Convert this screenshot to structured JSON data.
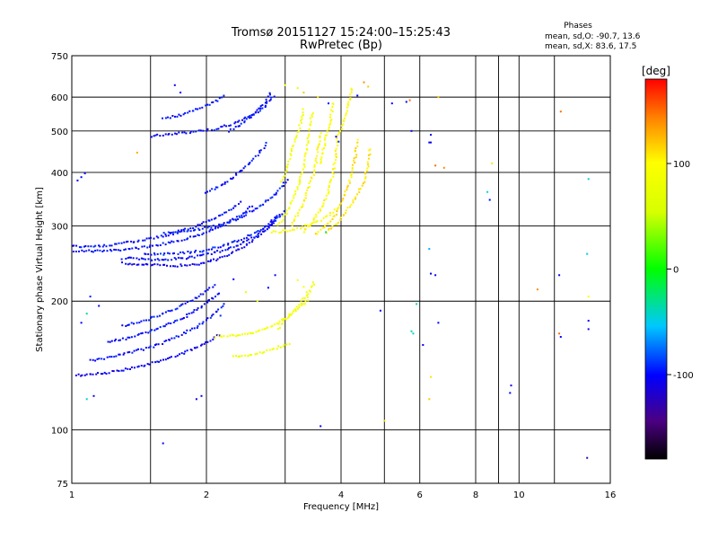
{
  "header": {
    "title": "Tromsø 20151127 15:24:00–15:25:43",
    "subtitle": "RwPretec (Bp)",
    "stats_title": "Phases",
    "stats_o": "mean, sd,O: -90.7, 13.6",
    "stats_x": "mean, sd,X:  83.6, 17.5"
  },
  "colorbar": {
    "unit": "[deg]",
    "range": [
      -180,
      180
    ],
    "ticks": [
      {
        "value": 100,
        "label": "100"
      },
      {
        "value": 0,
        "label": "0"
      },
      {
        "value": -100,
        "label": "-100"
      }
    ]
  },
  "chart_data": {
    "type": "scatter",
    "xlabel": "Frequency [MHz]",
    "ylabel": "Stationary phase Virtual Height [km]",
    "x_scale": "log",
    "y_scale": "log",
    "xlim": [
      1,
      16
    ],
    "ylim": [
      75,
      750
    ],
    "grid": true,
    "color_variable": "phase [deg]",
    "x_ticks": [
      {
        "value": 1,
        "label": "1"
      },
      {
        "value": 2,
        "label": "2"
      },
      {
        "value": 4,
        "label": "4"
      },
      {
        "value": 6,
        "label": "6"
      },
      {
        "value": 8,
        "label": "8"
      },
      {
        "value": 10,
        "label": "10"
      },
      {
        "value": 16,
        "label": "16"
      }
    ],
    "x_gridlines": [
      1.5,
      2,
      3,
      4,
      5,
      6,
      8,
      9,
      10,
      12,
      16
    ],
    "y_ticks": [
      {
        "value": 75,
        "label": "75"
      },
      {
        "value": 100,
        "label": "100"
      },
      {
        "value": 200,
        "label": "200"
      },
      {
        "value": 300,
        "label": "300"
      },
      {
        "value": 400,
        "label": "400"
      },
      {
        "value": 500,
        "label": "500"
      },
      {
        "value": 600,
        "label": "600"
      },
      {
        "value": 750,
        "label": "750"
      }
    ],
    "traces": [
      {
        "phase": -100,
        "points": [
          [
            1.0,
            262
          ],
          [
            1.2,
            262
          ],
          [
            1.4,
            266
          ],
          [
            1.6,
            272
          ],
          [
            1.8,
            280
          ],
          [
            2.0,
            290
          ],
          [
            2.2,
            302
          ],
          [
            2.4,
            318
          ],
          [
            2.55,
            336
          ]
        ]
      },
      {
        "phase": -100,
        "points": [
          [
            1.0,
            268
          ],
          [
            1.2,
            270
          ],
          [
            1.4,
            276
          ],
          [
            1.6,
            284
          ],
          [
            1.8,
            294
          ],
          [
            2.0,
            306
          ],
          [
            2.2,
            322
          ],
          [
            2.4,
            342
          ]
        ]
      },
      {
        "phase": -105,
        "points": [
          [
            1.3,
            245
          ],
          [
            1.5,
            243
          ],
          [
            1.7,
            242
          ],
          [
            1.9,
            244
          ],
          [
            2.1,
            250
          ],
          [
            2.3,
            260
          ],
          [
            2.5,
            274
          ],
          [
            2.7,
            292
          ],
          [
            2.9,
            318
          ]
        ]
      },
      {
        "phase": -100,
        "points": [
          [
            1.3,
            252
          ],
          [
            1.55,
            250
          ],
          [
            1.8,
            252
          ],
          [
            2.05,
            258
          ],
          [
            2.3,
            268
          ],
          [
            2.55,
            282
          ],
          [
            2.8,
            302
          ],
          [
            3.0,
            326
          ]
        ]
      },
      {
        "phase": -95,
        "points": [
          [
            1.45,
            258
          ],
          [
            1.7,
            258
          ],
          [
            1.95,
            262
          ],
          [
            2.2,
            270
          ],
          [
            2.45,
            282
          ],
          [
            2.7,
            298
          ],
          [
            2.95,
            320
          ]
        ]
      },
      {
        "phase": -95,
        "points": [
          [
            1.6,
            288
          ],
          [
            1.85,
            292
          ],
          [
            2.1,
            300
          ],
          [
            2.35,
            312
          ],
          [
            2.6,
            330
          ],
          [
            2.85,
            356
          ],
          [
            3.05,
            388
          ]
        ]
      },
      {
        "phase": -100,
        "points": [
          [
            2.0,
            358
          ],
          [
            2.15,
            372
          ],
          [
            2.3,
            390
          ],
          [
            2.45,
            412
          ],
          [
            2.6,
            440
          ],
          [
            2.75,
            472
          ]
        ]
      },
      {
        "phase": -100,
        "points": [
          [
            1.5,
            486
          ],
          [
            1.7,
            492
          ],
          [
            1.9,
            498
          ],
          [
            2.1,
            506
          ],
          [
            2.3,
            520
          ],
          [
            2.5,
            540
          ],
          [
            2.7,
            570
          ],
          [
            2.85,
            610
          ]
        ]
      },
      {
        "phase": -100,
        "points": [
          [
            2.25,
            500
          ],
          [
            2.4,
            520
          ],
          [
            2.55,
            548
          ],
          [
            2.7,
            582
          ],
          [
            2.8,
            620
          ]
        ]
      },
      {
        "phase": -100,
        "points": [
          [
            1.6,
            535
          ],
          [
            1.75,
            545
          ],
          [
            1.9,
            560
          ],
          [
            2.05,
            580
          ],
          [
            2.2,
            605
          ]
        ]
      },
      {
        "phase": -105,
        "points": [
          [
            1.02,
            134
          ],
          [
            1.2,
            136
          ],
          [
            1.4,
            140
          ],
          [
            1.6,
            146
          ],
          [
            1.8,
            152
          ],
          [
            2.0,
            160
          ],
          [
            2.15,
            168
          ]
        ]
      },
      {
        "phase": -100,
        "points": [
          [
            1.1,
            145
          ],
          [
            1.3,
            150
          ],
          [
            1.5,
            156
          ],
          [
            1.7,
            164
          ],
          [
            1.9,
            174
          ],
          [
            2.1,
            188
          ],
          [
            2.2,
            198
          ]
        ]
      },
      {
        "phase": -100,
        "points": [
          [
            1.2,
            160
          ],
          [
            1.4,
            166
          ],
          [
            1.6,
            174
          ],
          [
            1.8,
            184
          ],
          [
            2.0,
            198
          ],
          [
            2.15,
            210
          ]
        ]
      },
      {
        "phase": -100,
        "points": [
          [
            1.3,
            175
          ],
          [
            1.5,
            182
          ],
          [
            1.7,
            192
          ],
          [
            1.9,
            204
          ],
          [
            2.1,
            220
          ]
        ]
      },
      {
        "phase": 90,
        "points": [
          [
            2.1,
            165
          ],
          [
            2.3,
            166
          ],
          [
            2.5,
            168
          ],
          [
            2.7,
            172
          ],
          [
            2.9,
            178
          ],
          [
            3.1,
            186
          ],
          [
            3.3,
            196
          ],
          [
            3.4,
            206
          ]
        ]
      },
      {
        "phase": 80,
        "points": [
          [
            2.3,
            148
          ],
          [
            2.5,
            150
          ],
          [
            2.7,
            152
          ],
          [
            2.9,
            156
          ],
          [
            3.1,
            160
          ]
        ]
      },
      {
        "phase": 85,
        "points": [
          [
            2.9,
            172
          ],
          [
            3.0,
            182
          ],
          [
            3.2,
            194
          ],
          [
            3.4,
            210
          ],
          [
            3.5,
            225
          ]
        ]
      },
      {
        "phase": 90,
        "points": [
          [
            2.9,
            300
          ],
          [
            3.0,
            318
          ],
          [
            3.1,
            340
          ],
          [
            3.2,
            370
          ],
          [
            3.3,
            410
          ],
          [
            3.35,
            450
          ],
          [
            3.4,
            500
          ],
          [
            3.45,
            560
          ]
        ]
      },
      {
        "phase": 100,
        "points": [
          [
            3.1,
            300
          ],
          [
            3.2,
            318
          ],
          [
            3.3,
            342
          ],
          [
            3.4,
            372
          ],
          [
            3.5,
            410
          ],
          [
            3.55,
            450
          ],
          [
            3.6,
            500
          ]
        ]
      },
      {
        "phase": 100,
        "points": [
          [
            3.3,
            290
          ],
          [
            3.45,
            306
          ],
          [
            3.6,
            328
          ],
          [
            3.75,
            360
          ],
          [
            3.85,
            400
          ],
          [
            3.9,
            450
          ],
          [
            3.95,
            500
          ]
        ]
      },
      {
        "phase": 110,
        "points": [
          [
            3.5,
            286
          ],
          [
            3.7,
            300
          ],
          [
            3.9,
            320
          ],
          [
            4.05,
            348
          ],
          [
            4.2,
            385
          ],
          [
            4.3,
            430
          ],
          [
            4.35,
            480
          ]
        ]
      },
      {
        "phase": 110,
        "points": [
          [
            3.7,
            290
          ],
          [
            3.9,
            304
          ],
          [
            4.1,
            322
          ],
          [
            4.3,
            348
          ],
          [
            4.5,
            380
          ],
          [
            4.6,
            420
          ],
          [
            4.65,
            460
          ]
        ]
      },
      {
        "phase": 95,
        "points": [
          [
            2.8,
            290
          ],
          [
            3.0,
            292
          ],
          [
            3.2,
            296
          ],
          [
            3.4,
            302
          ],
          [
            3.6,
            310
          ],
          [
            3.8,
            320
          ],
          [
            3.95,
            332
          ]
        ]
      },
      {
        "phase": 85,
        "points": [
          [
            2.95,
            380
          ],
          [
            3.05,
            420
          ],
          [
            3.15,
            470
          ],
          [
            3.25,
            520
          ],
          [
            3.3,
            570
          ]
        ]
      },
      {
        "phase": 95,
        "points": [
          [
            3.6,
            420
          ],
          [
            3.7,
            480
          ],
          [
            3.8,
            540
          ],
          [
            3.85,
            590
          ]
        ]
      },
      {
        "phase": 100,
        "points": [
          [
            4.0,
            500
          ],
          [
            4.1,
            550
          ],
          [
            4.2,
            600
          ],
          [
            4.25,
            640
          ]
        ]
      }
    ],
    "scatter_points": [
      {
        "x": 1.05,
        "y": 390,
        "phase": -100
      },
      {
        "x": 1.07,
        "y": 398,
        "phase": -100
      },
      {
        "x": 1.03,
        "y": 383,
        "phase": -105
      },
      {
        "x": 1.1,
        "y": 205,
        "phase": -95
      },
      {
        "x": 1.15,
        "y": 195,
        "phase": -100
      },
      {
        "x": 1.08,
        "y": 187,
        "phase": -35
      },
      {
        "x": 1.05,
        "y": 178,
        "phase": -100
      },
      {
        "x": 1.12,
        "y": 120,
        "phase": -110
      },
      {
        "x": 1.08,
        "y": 118,
        "phase": -40
      },
      {
        "x": 1.6,
        "y": 93,
        "phase": -100
      },
      {
        "x": 1.95,
        "y": 120,
        "phase": -105
      },
      {
        "x": 1.9,
        "y": 118,
        "phase": -110
      },
      {
        "x": 1.4,
        "y": 445,
        "phase": 130
      },
      {
        "x": 1.75,
        "y": 615,
        "phase": -100
      },
      {
        "x": 1.7,
        "y": 640,
        "phase": -105
      },
      {
        "x": 2.3,
        "y": 225,
        "phase": -100
      },
      {
        "x": 2.45,
        "y": 210,
        "phase": 60
      },
      {
        "x": 2.6,
        "y": 200,
        "phase": 80
      },
      {
        "x": 2.75,
        "y": 215,
        "phase": -100
      },
      {
        "x": 2.85,
        "y": 230,
        "phase": -105
      },
      {
        "x": 3.2,
        "y": 224,
        "phase": 90
      },
      {
        "x": 3.3,
        "y": 216,
        "phase": 95
      },
      {
        "x": 3.35,
        "y": 210,
        "phase": 85
      },
      {
        "x": 2.15,
        "y": 185,
        "phase": -90
      },
      {
        "x": 3.0,
        "y": 640,
        "phase": 100
      },
      {
        "x": 3.2,
        "y": 630,
        "phase": 80
      },
      {
        "x": 3.3,
        "y": 615,
        "phase": 120
      },
      {
        "x": 3.55,
        "y": 600,
        "phase": 110
      },
      {
        "x": 3.75,
        "y": 580,
        "phase": -100
      },
      {
        "x": 3.9,
        "y": 485,
        "phase": -100
      },
      {
        "x": 3.95,
        "y": 472,
        "phase": -90
      },
      {
        "x": 4.35,
        "y": 605,
        "phase": -100
      },
      {
        "x": 4.5,
        "y": 650,
        "phase": 140
      },
      {
        "x": 4.6,
        "y": 635,
        "phase": 120
      },
      {
        "x": 5.2,
        "y": 580,
        "phase": -100
      },
      {
        "x": 5.6,
        "y": 585,
        "phase": -100
      },
      {
        "x": 5.7,
        "y": 590,
        "phase": 150
      },
      {
        "x": 5.75,
        "y": 500,
        "phase": -100
      },
      {
        "x": 6.35,
        "y": 490,
        "phase": -105
      },
      {
        "x": 6.35,
        "y": 470,
        "phase": -110
      },
      {
        "x": 6.3,
        "y": 470,
        "phase": -100
      },
      {
        "x": 6.6,
        "y": 600,
        "phase": 120
      },
      {
        "x": 6.5,
        "y": 415,
        "phase": 150
      },
      {
        "x": 6.8,
        "y": 410,
        "phase": 140
      },
      {
        "x": 6.3,
        "y": 265,
        "phase": -60
      },
      {
        "x": 6.35,
        "y": 232,
        "phase": -105
      },
      {
        "x": 6.5,
        "y": 230,
        "phase": -100
      },
      {
        "x": 5.9,
        "y": 197,
        "phase": -40
      },
      {
        "x": 5.75,
        "y": 170,
        "phase": -40
      },
      {
        "x": 5.8,
        "y": 168,
        "phase": -45
      },
      {
        "x": 6.3,
        "y": 118,
        "phase": 120
      },
      {
        "x": 6.1,
        "y": 158,
        "phase": -100
      },
      {
        "x": 6.6,
        "y": 178,
        "phase": -100
      },
      {
        "x": 5.0,
        "y": 105,
        "phase": 110
      },
      {
        "x": 3.6,
        "y": 102,
        "phase": -100
      },
      {
        "x": 3.7,
        "y": 290,
        "phase": -30
      },
      {
        "x": 4.9,
        "y": 190,
        "phase": -100
      },
      {
        "x": 6.35,
        "y": 133,
        "phase": 110
      },
      {
        "x": 8.5,
        "y": 360,
        "phase": -50
      },
      {
        "x": 8.6,
        "y": 345,
        "phase": -100
      },
      {
        "x": 8.7,
        "y": 420,
        "phase": 110
      },
      {
        "x": 9.6,
        "y": 127,
        "phase": -110
      },
      {
        "x": 9.55,
        "y": 122,
        "phase": -100
      },
      {
        "x": 11.0,
        "y": 213,
        "phase": 140
      },
      {
        "x": 12.3,
        "y": 230,
        "phase": -100
      },
      {
        "x": 12.4,
        "y": 555,
        "phase": 150
      },
      {
        "x": 12.3,
        "y": 168,
        "phase": 150
      },
      {
        "x": 12.4,
        "y": 165,
        "phase": -100
      },
      {
        "x": 14.3,
        "y": 386,
        "phase": -50
      },
      {
        "x": 14.2,
        "y": 258,
        "phase": -50
      },
      {
        "x": 14.3,
        "y": 205,
        "phase": 100
      },
      {
        "x": 14.3,
        "y": 172,
        "phase": -110
      },
      {
        "x": 14.2,
        "y": 86,
        "phase": -130
      },
      {
        "x": 14.3,
        "y": 180,
        "phase": -100
      }
    ]
  }
}
